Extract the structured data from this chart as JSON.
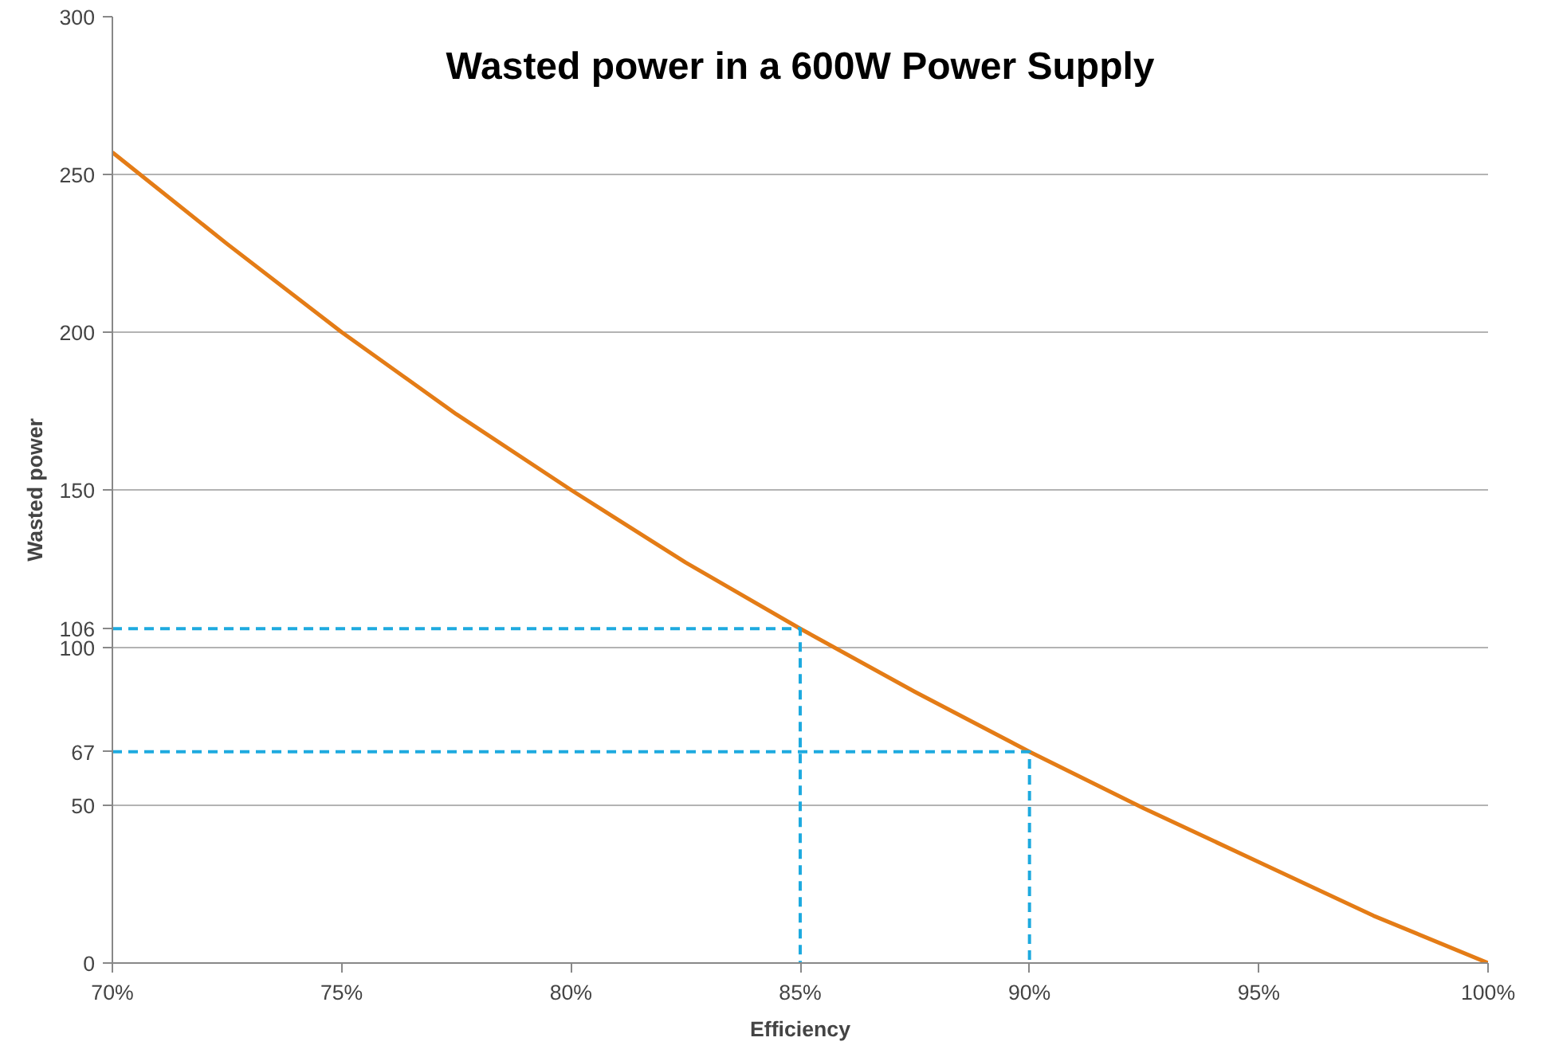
{
  "chart_data": {
    "type": "line",
    "title": "Wasted power in a 600W Power Supply",
    "xlabel": "Efficiency",
    "ylabel": "Wasted power",
    "x": [
      70,
      72.5,
      75,
      77.5,
      80,
      82.5,
      85,
      87.5,
      90,
      92.5,
      95,
      97.5,
      100
    ],
    "series": [
      {
        "color": "#e47c16",
        "values": [
          257,
          228,
          200,
          174,
          150,
          127,
          106,
          86,
          67,
          49,
          32,
          15,
          0
        ]
      },
      {
        "type": "line",
        "line_style": "dashed",
        "color": "#1eaadf",
        "x": [
          70,
          85,
          85
        ],
        "values": [
          106,
          106,
          0
        ]
      },
      {
        "type": "line",
        "line_style": "dashed",
        "color": "#1eaadf",
        "x": [
          70,
          90,
          90
        ],
        "values": [
          67,
          67,
          0
        ]
      }
    ],
    "xlim": [
      70,
      100
    ],
    "xticks": [
      {
        "value": 70,
        "label": "70%"
      },
      {
        "value": 75,
        "label": "75%"
      },
      {
        "value": 80,
        "label": "80%"
      },
      {
        "value": 85,
        "label": "85%"
      },
      {
        "value": 90,
        "label": "90%"
      },
      {
        "value": 95,
        "label": "95%"
      },
      {
        "value": 100,
        "label": "100%"
      }
    ],
    "ylim": [
      0,
      300
    ],
    "yticks": [
      0,
      50,
      {
        "value": 67,
        "label": "67"
      },
      100,
      {
        "value": 106,
        "label": "106"
      },
      150,
      200,
      250,
      300
    ],
    "grid": "y",
    "marker": "none",
    "line_style": "solid"
  }
}
